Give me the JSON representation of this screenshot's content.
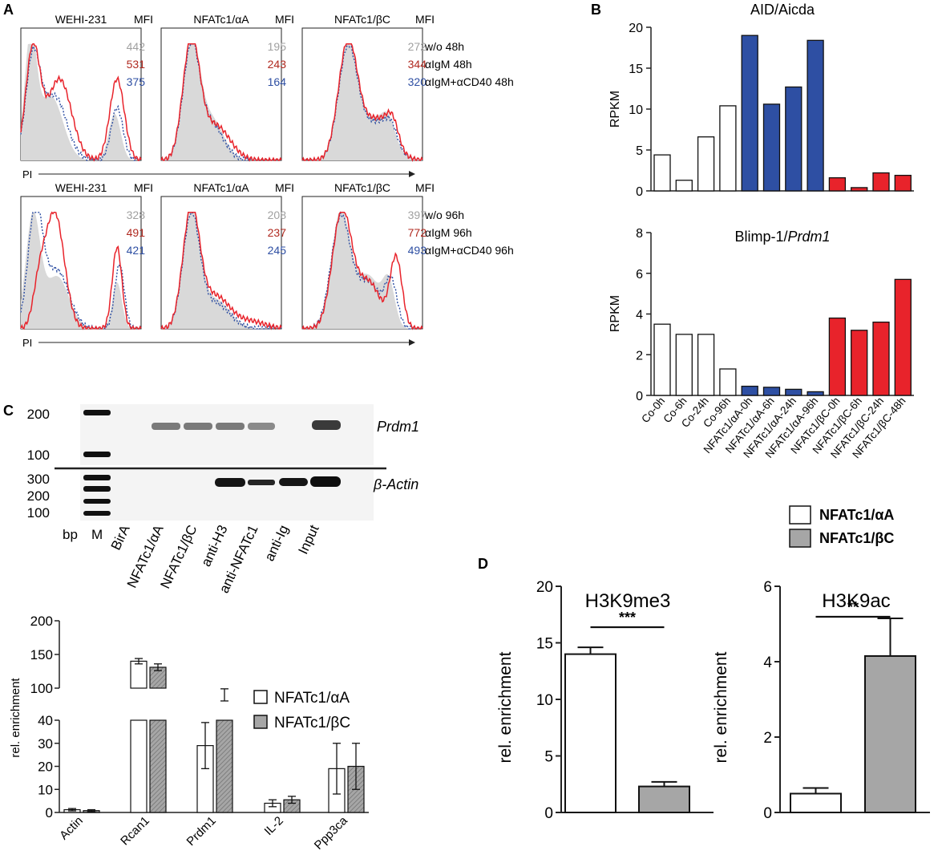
{
  "panels": {
    "A": "A",
    "B": "B",
    "C": "C",
    "D": "D"
  },
  "colors": {
    "red": "#e8232b",
    "blue": "#2e4fa3",
    "gray_fill": "#d9d9d9",
    "gray_text": "#a0a0a0",
    "bar_gray": "#a6a6a6",
    "dark_red": "#b0291f"
  },
  "panel_a": {
    "axis_label": "PI",
    "mfi_label": "MFI",
    "rows": [
      {
        "panels": [
          {
            "title": "WEHI-231",
            "mfi": [
              "442",
              "531",
              "375"
            ]
          },
          {
            "title": "NFATc1/αA",
            "mfi": [
              "195",
              "243",
              "164"
            ]
          },
          {
            "title": "NFATc1/βC",
            "mfi": [
              "272",
              "344",
              "320"
            ]
          }
        ],
        "legend": [
          "w/o 48h",
          "αIgM 48h",
          "αIgM+αCD40 48h"
        ]
      },
      {
        "panels": [
          {
            "title": "WEHI-231",
            "mfi": [
              "328",
              "491",
              "421"
            ]
          },
          {
            "title": "NFATc1/αA",
            "mfi": [
              "208",
              "237",
              "245"
            ]
          },
          {
            "title": "NFATc1/βC",
            "mfi": [
              "397",
              "772",
              "493"
            ]
          }
        ],
        "legend": [
          "w/o 96h",
          "αIgM 96h",
          "αIgM+αCD40 96h"
        ]
      }
    ]
  },
  "chart_data": [
    {
      "id": "aid",
      "type": "bar",
      "title": "AID/Aicda",
      "ylabel": "RPKM",
      "xlabel": "",
      "ylim": [
        0,
        20
      ],
      "yticks": [
        0,
        5,
        10,
        15,
        20
      ],
      "categories": [
        "Co-0h",
        "Co-6h",
        "Co-24h",
        "Co-96h",
        "NFATc1/αA-0h",
        "NFATc1/αA-6h",
        "NFATc1/αA-24h",
        "NFATc1/αA-96h",
        "NFATc1/βC-0h",
        "NFATc1/βC-6h",
        "NFATc1/βC-24h",
        "NFATc1/βC-48h"
      ],
      "values": [
        4.4,
        1.3,
        6.6,
        10.4,
        19.0,
        10.6,
        12.7,
        18.4,
        1.6,
        0.4,
        2.2,
        1.9
      ]
    },
    {
      "id": "blimp",
      "type": "bar",
      "title": "Blimp-1/",
      "title_italic": "Prdm1",
      "ylabel": "RPKM",
      "xlabel": "",
      "ylim": [
        0,
        8
      ],
      "yticks": [
        0,
        2,
        4,
        6,
        8
      ],
      "categories": [
        "Co-0h",
        "Co-6h",
        "Co-24h",
        "Co-96h",
        "NFATc1/αA-0h",
        "NFATc1/αA-6h",
        "NFATc1/αA-24h",
        "NFATc1/αA-96h",
        "NFATc1/βC-0h",
        "NFATc1/βC-6h",
        "NFATc1/βC-24h",
        "NFATc1/βC-48h"
      ],
      "values": [
        3.5,
        3.0,
        3.0,
        1.3,
        0.45,
        0.4,
        0.3,
        0.18,
        3.8,
        3.2,
        3.6,
        5.7
      ]
    },
    {
      "id": "chip",
      "type": "bar",
      "title": "",
      "ylabel": "rel. enrichment",
      "xlabel": "",
      "ylim": [
        0,
        200
      ],
      "yticks_low": [
        0,
        10,
        20,
        30,
        40
      ],
      "yticks_high": [
        100,
        150,
        200
      ],
      "categories": [
        "Actin",
        "Rcan1",
        "Prdm1",
        "IL-2",
        "Ppp3ca"
      ],
      "series": [
        {
          "name": "NFATc1/αA",
          "values": [
            1.2,
            140,
            29,
            4,
            19
          ],
          "errors": [
            0.5,
            4,
            10,
            1.5,
            11
          ]
        },
        {
          "name": "NFATc1/βC",
          "values": [
            0.8,
            131,
            90,
            5.5,
            20
          ],
          "errors": [
            0.4,
            5,
            9,
            1.5,
            10
          ]
        }
      ]
    },
    {
      "id": "h3k9me3",
      "type": "bar",
      "title": "H3K9me3",
      "ylabel": "rel. enrichment",
      "xlabel": "",
      "ylim": [
        0,
        20
      ],
      "yticks": [
        0,
        5,
        10,
        15,
        20
      ],
      "significance": "***",
      "series": [
        {
          "name": "NFATc1/αA",
          "values": [
            14.0
          ],
          "errors": [
            0.6
          ]
        },
        {
          "name": "NFATc1/βC",
          "values": [
            2.3
          ],
          "errors": [
            0.4
          ]
        }
      ]
    },
    {
      "id": "h3k9ac",
      "type": "bar",
      "title": "H3K9ac",
      "ylabel": "rel. enrichment",
      "xlabel": "",
      "ylim": [
        0,
        6
      ],
      "yticks": [
        0,
        2,
        4,
        6
      ],
      "significance": "**",
      "series": [
        {
          "name": "NFATc1/αA",
          "values": [
            0.5
          ],
          "errors": [
            0.15
          ]
        },
        {
          "name": "NFATc1/βC",
          "values": [
            4.15
          ],
          "errors": [
            1.0
          ]
        }
      ]
    }
  ],
  "gel": {
    "gene_top": "Prdm1",
    "gene_bottom": "β-Actin",
    "markers_top": [
      "200",
      "100"
    ],
    "markers_bottom": [
      "300",
      "200",
      "100"
    ],
    "bp_label": "bp",
    "m_label": "M",
    "lanes": [
      "BirA",
      "NFATc1/αA",
      "NFATc1/βC",
      "anti-H3",
      "anti-NFATc1",
      "anti-Ig",
      "Input"
    ]
  },
  "legend_chip": [
    "NFATc1/αA",
    "NFATc1/βC"
  ],
  "legend_d": [
    "NFATc1/αA",
    "NFATc1/βC"
  ]
}
